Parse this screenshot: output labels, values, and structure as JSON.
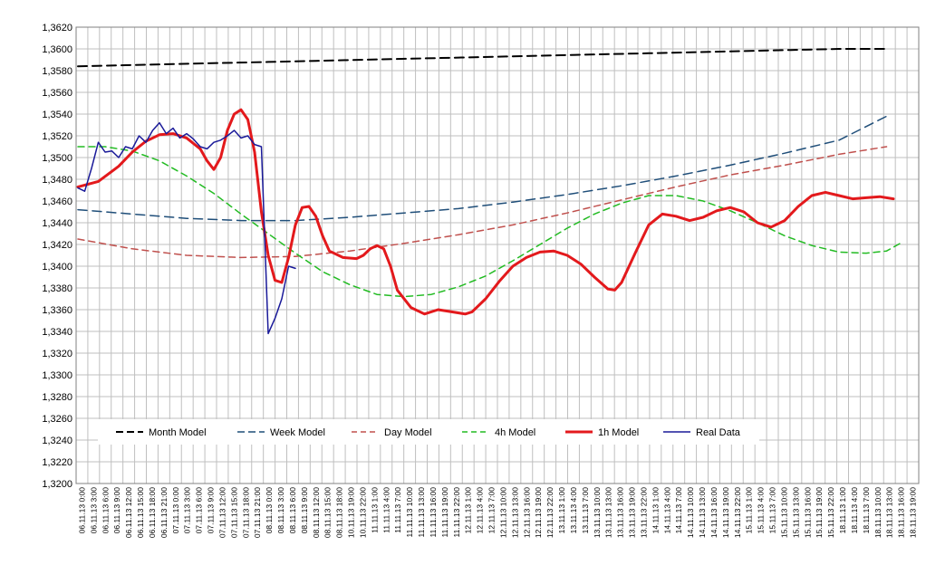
{
  "chart_data": {
    "type": "line",
    "title": "",
    "xlabel": "",
    "ylabel": "",
    "ylim": [
      1.32,
      1.362
    ],
    "y_ticks": [
      "1,3200",
      "1,3220",
      "1,3240",
      "1,3260",
      "1,3280",
      "1,3300",
      "1,3320",
      "1,3340",
      "1,3360",
      "1,3380",
      "1,3400",
      "1,3420",
      "1,3440",
      "1,3460",
      "1,3480",
      "1,3500",
      "1,3520",
      "1,3540",
      "1,3560",
      "1,3580",
      "1,3600",
      "1,3620"
    ],
    "x_ticks": [
      "06.11.13 0:00",
      "06.11.13 3:00",
      "06.11.13 6:00",
      "06.11.13 9:00",
      "06.11.13 12:00",
      "06.11.13 15:00",
      "06.11.13 18:00",
      "06.11.13 21:00",
      "07.11.13 0:00",
      "07.11.13 3:00",
      "07.11.13 6:00",
      "07.11.13 9:00",
      "07.11.13 12:00",
      "07.11.13 15:00",
      "07.11.13 18:00",
      "07.11.13 21:00",
      "08.11.13 0:00",
      "08.11.13 3:00",
      "08.11.13 6:00",
      "08.11.13 9:00",
      "08.11.13 12:00",
      "08.11.13 15:00",
      "08.11.13 18:00",
      "10.11.13 19:00",
      "10.11.13 22:00",
      "11.11.13 1:00",
      "11.11.13 4:00",
      "11.11.13 7:00",
      "11.11.13 10:00",
      "11.11.13 13:00",
      "11.11.13 16:00",
      "11.11.13 19:00",
      "11.11.13 22:00",
      "12.11.13 1:00",
      "12.11.13 4:00",
      "12.11.13 7:00",
      "12.11.13 10:00",
      "12.11.13 13:00",
      "12.11.13 16:00",
      "12.11.13 19:00",
      "12.11.13 22:00",
      "13.11.13 1:00",
      "13.11.13 4:00",
      "13.11.13 7:00",
      "13.11.13 10:00",
      "13.11.13 13:00",
      "13.11.13 16:00",
      "13.11.13 19:00",
      "13.11.13 22:00",
      "14.11.13 1:00",
      "14.11.13 4:00",
      "14.11.13 7:00",
      "14.11.13 10:00",
      "14.11.13 13:00",
      "14.11.13 16:00",
      "14.11.13 19:00",
      "14.11.13 22:00",
      "15.11.13 1:00",
      "15.11.13 4:00",
      "15.11.13 7:00",
      "15.11.13 10:00",
      "15.11.13 13:00",
      "15.11.13 16:00",
      "15.11.13 19:00",
      "15.11.13 22:00",
      "18.11.13 1:00",
      "18.11.13 4:00",
      "18.11.13 7:00",
      "18.11.13 10:00",
      "18.11.13 13:00",
      "18.11.13 16:00",
      "18.11.13 19:00"
    ],
    "grid": true,
    "legend": "inside-bottom",
    "series": [
      {
        "name": "Month Model",
        "color": "#000000",
        "dash": "long-dash",
        "width": 2,
        "points": [
          [
            0,
            1.3584
          ],
          [
            7,
            1.3585
          ],
          [
            14,
            1.3586
          ],
          [
            21,
            1.3587
          ],
          [
            28,
            1.3588
          ],
          [
            35,
            1.3589
          ],
          [
            42,
            1.359
          ],
          [
            49,
            1.3591
          ],
          [
            56,
            1.3592
          ],
          [
            63,
            1.3593
          ],
          [
            70,
            1.3594
          ],
          [
            77,
            1.3595
          ],
          [
            84,
            1.3596
          ],
          [
            91,
            1.3597
          ],
          [
            98,
            1.3598
          ],
          [
            105,
            1.3599
          ],
          [
            112,
            1.36
          ],
          [
            119,
            1.36
          ]
        ]
      },
      {
        "name": "Week Model",
        "color": "#1F4E79",
        "dash": "long-dash",
        "width": 1.5,
        "points": [
          [
            0,
            1.3452
          ],
          [
            8,
            1.3448
          ],
          [
            16,
            1.3444
          ],
          [
            24,
            1.3442
          ],
          [
            32,
            1.3442
          ],
          [
            40,
            1.3445
          ],
          [
            48,
            1.3449
          ],
          [
            56,
            1.3453
          ],
          [
            64,
            1.3459
          ],
          [
            72,
            1.3466
          ],
          [
            80,
            1.3474
          ],
          [
            88,
            1.3483
          ],
          [
            96,
            1.3493
          ],
          [
            104,
            1.3504
          ],
          [
            112,
            1.3516
          ],
          [
            119,
            1.3538
          ]
        ]
      },
      {
        "name": "Day Model",
        "color": "#C0504D",
        "dash": "dash",
        "width": 1.5,
        "points": [
          [
            0,
            1.3425
          ],
          [
            8,
            1.3416
          ],
          [
            16,
            1.341
          ],
          [
            24,
            1.3408
          ],
          [
            32,
            1.3409
          ],
          [
            40,
            1.3414
          ],
          [
            48,
            1.3421
          ],
          [
            56,
            1.3429
          ],
          [
            64,
            1.3438
          ],
          [
            72,
            1.3449
          ],
          [
            80,
            1.3461
          ],
          [
            88,
            1.3473
          ],
          [
            96,
            1.3484
          ],
          [
            104,
            1.3493
          ],
          [
            112,
            1.3503
          ],
          [
            119,
            1.351
          ]
        ]
      },
      {
        "name": "4h Model",
        "color": "#22BB22",
        "dash": "dash",
        "width": 1.5,
        "points": [
          [
            0,
            1.351
          ],
          [
            4,
            1.351
          ],
          [
            8,
            1.3506
          ],
          [
            12,
            1.3497
          ],
          [
            16,
            1.3483
          ],
          [
            20,
            1.3467
          ],
          [
            24,
            1.3448
          ],
          [
            28,
            1.343
          ],
          [
            32,
            1.3412
          ],
          [
            36,
            1.3395
          ],
          [
            40,
            1.3383
          ],
          [
            44,
            1.3374
          ],
          [
            48,
            1.3372
          ],
          [
            52,
            1.3374
          ],
          [
            56,
            1.3381
          ],
          [
            60,
            1.3391
          ],
          [
            64,
            1.3405
          ],
          [
            68,
            1.342
          ],
          [
            72,
            1.3435
          ],
          [
            76,
            1.3448
          ],
          [
            80,
            1.3458
          ],
          [
            84,
            1.3465
          ],
          [
            88,
            1.3465
          ],
          [
            92,
            1.346
          ],
          [
            96,
            1.3451
          ],
          [
            100,
            1.344
          ],
          [
            104,
            1.3428
          ],
          [
            108,
            1.3419
          ],
          [
            112,
            1.3413
          ],
          [
            116,
            1.3412
          ],
          [
            119,
            1.3414
          ],
          [
            121,
            1.3421
          ]
        ]
      },
      {
        "name": "1h Model",
        "color": "#E3191C",
        "dash": "solid",
        "width": 3,
        "points": [
          [
            0,
            1.3473
          ],
          [
            3,
            1.3478
          ],
          [
            6,
            1.3492
          ],
          [
            8,
            1.3505
          ],
          [
            10,
            1.3515
          ],
          [
            12,
            1.3521
          ],
          [
            14,
            1.3522
          ],
          [
            16,
            1.3518
          ],
          [
            18,
            1.3508
          ],
          [
            19,
            1.3497
          ],
          [
            20,
            1.3489
          ],
          [
            21,
            1.35
          ],
          [
            22,
            1.3525
          ],
          [
            23,
            1.354
          ],
          [
            24,
            1.3544
          ],
          [
            25,
            1.3535
          ],
          [
            26,
            1.3505
          ],
          [
            27,
            1.345
          ],
          [
            28,
            1.341
          ],
          [
            29,
            1.3387
          ],
          [
            30,
            1.3385
          ],
          [
            31,
            1.3408
          ],
          [
            32,
            1.3438
          ],
          [
            33,
            1.3454
          ],
          [
            34,
            1.3455
          ],
          [
            35,
            1.3446
          ],
          [
            36,
            1.3428
          ],
          [
            37,
            1.3414
          ],
          [
            39,
            1.3408
          ],
          [
            41,
            1.3407
          ],
          [
            42,
            1.341
          ],
          [
            43,
            1.3416
          ],
          [
            44,
            1.3419
          ],
          [
            45,
            1.3416
          ],
          [
            46,
            1.34
          ],
          [
            47,
            1.3378
          ],
          [
            49,
            1.3362
          ],
          [
            51,
            1.3356
          ],
          [
            53,
            1.336
          ],
          [
            55,
            1.3358
          ],
          [
            57,
            1.3356
          ],
          [
            58,
            1.3358
          ],
          [
            60,
            1.337
          ],
          [
            62,
            1.3386
          ],
          [
            64,
            1.34
          ],
          [
            66,
            1.3408
          ],
          [
            68,
            1.3413
          ],
          [
            70,
            1.3414
          ],
          [
            72,
            1.341
          ],
          [
            74,
            1.3402
          ],
          [
            76,
            1.339
          ],
          [
            78,
            1.3379
          ],
          [
            79,
            1.3378
          ],
          [
            80,
            1.3385
          ],
          [
            82,
            1.3412
          ],
          [
            84,
            1.3438
          ],
          [
            86,
            1.3448
          ],
          [
            88,
            1.3446
          ],
          [
            90,
            1.3442
          ],
          [
            92,
            1.3445
          ],
          [
            94,
            1.3451
          ],
          [
            96,
            1.3454
          ],
          [
            98,
            1.345
          ],
          [
            100,
            1.344
          ],
          [
            102,
            1.3436
          ],
          [
            104,
            1.3442
          ],
          [
            106,
            1.3455
          ],
          [
            108,
            1.3465
          ],
          [
            110,
            1.3468
          ],
          [
            112,
            1.3465
          ],
          [
            114,
            1.3462
          ],
          [
            116,
            1.3463
          ],
          [
            118,
            1.3464
          ],
          [
            120,
            1.3462
          ]
        ]
      },
      {
        "name": "Real Data",
        "color": "#1A1A99",
        "dash": "solid",
        "width": 1.5,
        "points": [
          [
            0,
            1.3472
          ],
          [
            1,
            1.3469
          ],
          [
            2,
            1.349
          ],
          [
            3,
            1.3514
          ],
          [
            4,
            1.3505
          ],
          [
            5,
            1.3506
          ],
          [
            6,
            1.35
          ],
          [
            7,
            1.351
          ],
          [
            8,
            1.3508
          ],
          [
            9,
            1.352
          ],
          [
            10,
            1.3514
          ],
          [
            11,
            1.3525
          ],
          [
            12,
            1.3532
          ],
          [
            13,
            1.3522
          ],
          [
            14,
            1.3527
          ],
          [
            15,
            1.3518
          ],
          [
            16,
            1.3522
          ],
          [
            17,
            1.3517
          ],
          [
            18,
            1.351
          ],
          [
            19,
            1.3508
          ],
          [
            20,
            1.3514
          ],
          [
            21,
            1.3516
          ],
          [
            22,
            1.352
          ],
          [
            23,
            1.3525
          ],
          [
            24,
            1.3518
          ],
          [
            25,
            1.352
          ],
          [
            26,
            1.3512
          ],
          [
            27,
            1.351
          ],
          [
            28,
            1.3338
          ],
          [
            29,
            1.3352
          ],
          [
            30,
            1.337
          ],
          [
            31,
            1.34
          ],
          [
            32,
            1.3398
          ]
        ]
      }
    ]
  }
}
